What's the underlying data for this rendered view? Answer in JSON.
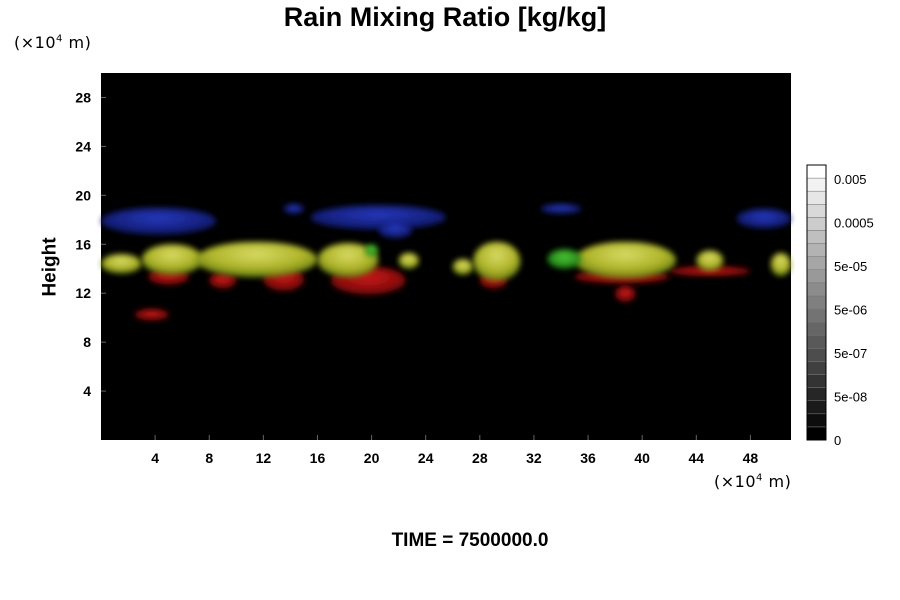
{
  "title": "Rain Mixing Ratio [kg/kg]",
  "y_unit": {
    "prefix": "(×10",
    "exp": "4",
    "suffix": " m)"
  },
  "x_unit": {
    "prefix": "(×10",
    "exp": "4",
    "suffix": " m)"
  },
  "ylabel": "Height",
  "time": {
    "label": "TIME = ",
    "value": "7500000.0"
  },
  "colors": {
    "background": "#000000",
    "rain_yellow": "#c8cc33",
    "rain_green": "#2fae1f",
    "rain_red": "#b01010",
    "rain_blue": "#1a2aa8"
  },
  "chart_data": {
    "type": "heatmap",
    "title": "Rain Mixing Ratio [kg/kg]",
    "xlabel": "",
    "ylabel": "Height",
    "x_ticks": [
      4,
      8,
      12,
      16,
      20,
      24,
      28,
      32,
      36,
      40,
      44,
      48
    ],
    "y_ticks": [
      4,
      8,
      12,
      16,
      20,
      24,
      28
    ],
    "xlim": [
      0,
      51
    ],
    "ylim": [
      0,
      30
    ],
    "colorbar": {
      "tick_labels": [
        "0.005",
        "0.0005",
        "5e-05",
        "5e-06",
        "5e-07",
        "5e-08",
        "0"
      ],
      "levels": 21,
      "scale": "log"
    },
    "features": [
      {
        "color": "blue",
        "x": [
          0,
          8.5
        ],
        "y": [
          16.8,
          19
        ]
      },
      {
        "color": "blue",
        "x": [
          13.5,
          15
        ],
        "y": [
          18.5,
          19.3
        ]
      },
      {
        "color": "blue",
        "x": [
          15.5,
          25.5
        ],
        "y": [
          17.2,
          19.2
        ]
      },
      {
        "color": "blue",
        "x": [
          20.5,
          23
        ],
        "y": [
          16.5,
          17.8
        ]
      },
      {
        "color": "blue",
        "x": [
          32.5,
          35.5
        ],
        "y": [
          18.5,
          19.3
        ]
      },
      {
        "color": "blue",
        "x": [
          47,
          51
        ],
        "y": [
          17.3,
          18.9
        ]
      },
      {
        "color": "yellow",
        "x": [
          0,
          3
        ],
        "y": [
          13.6,
          15.2
        ]
      },
      {
        "color": "yellow",
        "x": [
          3,
          7.5
        ],
        "y": [
          13.5,
          16
        ]
      },
      {
        "color": "yellow",
        "x": [
          7,
          16
        ],
        "y": [
          13.3,
          16.2
        ]
      },
      {
        "color": "yellow",
        "x": [
          16,
          20.5
        ],
        "y": [
          13.3,
          16.1
        ]
      },
      {
        "color": "yellow",
        "x": [
          22,
          23.5
        ],
        "y": [
          14,
          15.3
        ]
      },
      {
        "color": "yellow",
        "x": [
          26,
          27.5
        ],
        "y": [
          13.5,
          14.8
        ]
      },
      {
        "color": "yellow",
        "x": [
          27.5,
          31
        ],
        "y": [
          13,
          16.2
        ]
      },
      {
        "color": "yellow",
        "x": [
          35,
          42.5
        ],
        "y": [
          13.2,
          16.2
        ]
      },
      {
        "color": "yellow",
        "x": [
          44,
          46
        ],
        "y": [
          13.8,
          15.5
        ]
      },
      {
        "color": "yellow",
        "x": [
          49.5,
          51
        ],
        "y": [
          13.4,
          15.3
        ]
      },
      {
        "color": "green",
        "x": [
          33,
          35.5
        ],
        "y": [
          14,
          15.6
        ]
      },
      {
        "color": "green",
        "x": [
          19.5,
          20.5
        ],
        "y": [
          15,
          16
        ]
      },
      {
        "color": "red",
        "x": [
          3.5,
          6.5
        ],
        "y": [
          12.7,
          14
        ]
      },
      {
        "color": "red",
        "x": [
          8,
          10
        ],
        "y": [
          12.4,
          13.7
        ]
      },
      {
        "color": "red",
        "x": [
          12,
          15
        ],
        "y": [
          12.2,
          14.1
        ]
      },
      {
        "color": "red",
        "x": [
          17,
          22.5
        ],
        "y": [
          11.9,
          14.2
        ]
      },
      {
        "color": "red",
        "x": [
          28,
          30
        ],
        "y": [
          12.4,
          13.7
        ]
      },
      {
        "color": "red",
        "x": [
          35,
          42
        ],
        "y": [
          12.8,
          13.9
        ]
      },
      {
        "color": "red",
        "x": [
          38,
          39.5
        ],
        "y": [
          11.3,
          12.6
        ]
      },
      {
        "color": "red",
        "x": [
          2.5,
          5
        ],
        "y": [
          9.8,
          10.7
        ]
      },
      {
        "color": "red",
        "x": [
          42,
          48
        ],
        "y": [
          13.4,
          14.2
        ]
      }
    ]
  }
}
